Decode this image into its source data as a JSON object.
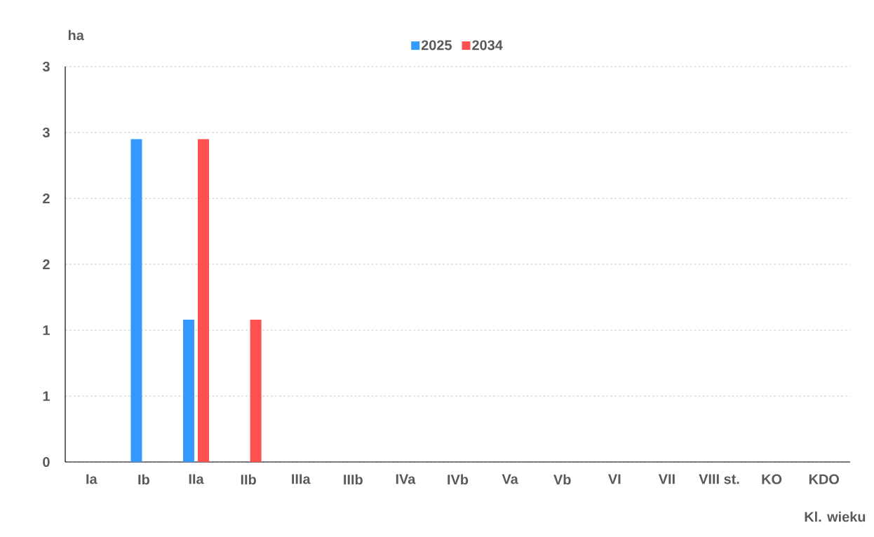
{
  "chart_data": {
    "type": "bar",
    "ylabel": "ha",
    "xlabel": "Kl. wieku",
    "categories": [
      "Ia",
      "Ib",
      "IIa",
      "IIb",
      "IIIa",
      "IIIb",
      "IVa",
      "IVb",
      "Va",
      "Vb",
      "VI",
      "VII",
      "VIII st.",
      "KO",
      "KDO"
    ],
    "series": [
      {
        "name": "2025",
        "color": "#3399ff",
        "values": [
          0,
          2.45,
          1.08,
          0,
          0,
          0,
          0,
          0,
          0,
          0,
          0,
          0,
          0,
          0,
          0
        ]
      },
      {
        "name": "2034",
        "color": "#ff5050",
        "values": [
          0,
          0,
          2.45,
          1.08,
          0,
          0,
          0,
          0,
          0,
          0,
          0,
          0,
          0,
          0,
          0
        ]
      }
    ],
    "ylim": [
      0,
      3
    ],
    "yticks": [
      0,
      {
        "value": 0.5,
        "label": "1"
      },
      {
        "value": 1,
        "label": "1"
      },
      {
        "value": 1.5,
        "label": "2"
      },
      {
        "value": 2,
        "label": "2"
      },
      {
        "value": 2.5,
        "label": "3"
      },
      {
        "value": 3,
        "label": "3"
      }
    ],
    "grid": "y",
    "legend": "top"
  }
}
